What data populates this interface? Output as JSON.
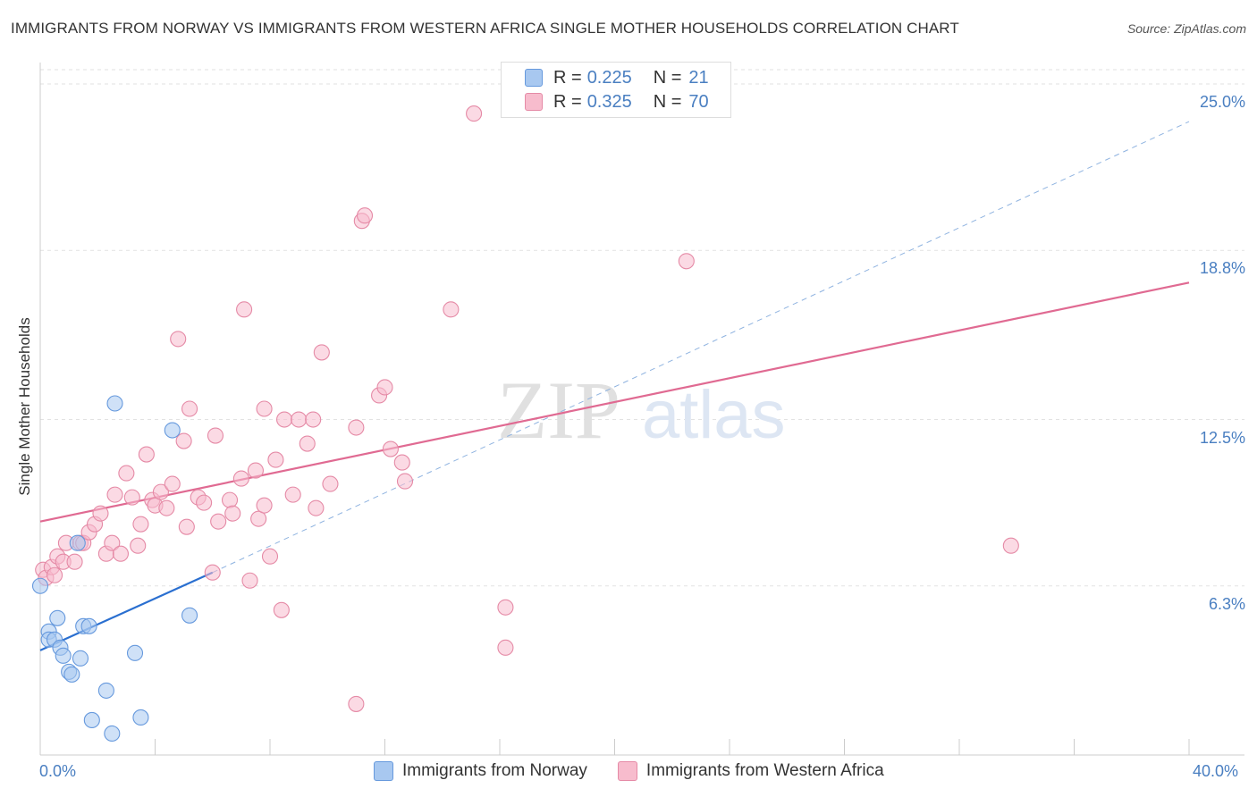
{
  "title": "IMMIGRANTS FROM NORWAY VS IMMIGRANTS FROM WESTERN AFRICA SINGLE MOTHER HOUSEHOLDS CORRELATION CHART",
  "source": "Source: ZipAtlas.com",
  "watermark": {
    "zip": "ZIP",
    "atlas": "atlas"
  },
  "legend_top": {
    "rows": [
      {
        "r_label": "R =",
        "r_value": "0.225",
        "n_label": "N =",
        "n_value": "21",
        "color": "#a8c8f0",
        "border": "#6699dd"
      },
      {
        "r_label": "R =",
        "r_value": "0.325",
        "n_label": "N =",
        "n_value": "70",
        "color": "#f7bccd",
        "border": "#e58aa6"
      }
    ]
  },
  "legend_bottom": [
    {
      "label": "Immigrants from Norway",
      "color": "#a8c8f0",
      "border": "#6699dd"
    },
    {
      "label": "Immigrants from Western Africa",
      "color": "#f7bccd",
      "border": "#e58aa6"
    }
  ],
  "axis_labels": {
    "x_min": "0.0%",
    "x_max": "40.0%",
    "y_title": "Single Mother Households"
  },
  "chart_data": {
    "type": "scatter",
    "xlim": [
      0,
      40
    ],
    "ylim": [
      0,
      25.8
    ],
    "y_ticks": [
      {
        "value": 6.3,
        "label": "6.3%"
      },
      {
        "value": 12.5,
        "label": "12.5%"
      },
      {
        "value": 18.8,
        "label": "18.8%"
      },
      {
        "value": 25.0,
        "label": "25.0%"
      }
    ],
    "x_tick_labels": [
      "0.0%",
      "40.0%"
    ],
    "series": [
      {
        "name": "Immigrants from Norway",
        "color": "#a8c8f0",
        "stroke": "#6699dd",
        "trend": {
          "x1": 0,
          "y1": 3.9,
          "x2": 6.0,
          "y2": 6.8,
          "color": "#2a6fd0"
        },
        "trend_ext": {
          "x1": 6.0,
          "y1": 6.8,
          "x2": 40,
          "y2": 23.6,
          "color": "#8fb3e0"
        },
        "points": [
          [
            0.0,
            6.3
          ],
          [
            0.3,
            4.6
          ],
          [
            0.3,
            4.3
          ],
          [
            0.5,
            4.3
          ],
          [
            0.6,
            5.1
          ],
          [
            0.7,
            4.0
          ],
          [
            0.8,
            3.7
          ],
          [
            1.0,
            3.1
          ],
          [
            1.1,
            3.0
          ],
          [
            1.4,
            3.6
          ],
          [
            1.3,
            7.9
          ],
          [
            1.5,
            4.8
          ],
          [
            1.7,
            4.8
          ],
          [
            2.3,
            2.4
          ],
          [
            1.8,
            1.3
          ],
          [
            2.5,
            0.8
          ],
          [
            3.3,
            3.8
          ],
          [
            3.5,
            1.4
          ],
          [
            2.6,
            13.1
          ],
          [
            4.6,
            12.1
          ],
          [
            5.2,
            5.2
          ]
        ]
      },
      {
        "name": "Immigrants from Western Africa",
        "color": "#f7bccd",
        "stroke": "#e58aa6",
        "trend": {
          "x1": 0,
          "y1": 8.7,
          "x2": 40,
          "y2": 17.6,
          "color": "#e06a92"
        },
        "points": [
          [
            0.1,
            6.9
          ],
          [
            0.2,
            6.6
          ],
          [
            0.4,
            7.0
          ],
          [
            0.5,
            6.7
          ],
          [
            0.6,
            7.4
          ],
          [
            0.8,
            7.2
          ],
          [
            0.9,
            7.9
          ],
          [
            1.2,
            7.2
          ],
          [
            1.4,
            7.9
          ],
          [
            1.5,
            7.9
          ],
          [
            1.7,
            8.3
          ],
          [
            1.9,
            8.6
          ],
          [
            2.1,
            9.0
          ],
          [
            2.3,
            7.5
          ],
          [
            2.5,
            7.9
          ],
          [
            2.6,
            9.7
          ],
          [
            2.8,
            7.5
          ],
          [
            3.0,
            10.5
          ],
          [
            3.2,
            9.6
          ],
          [
            3.4,
            7.8
          ],
          [
            3.5,
            8.6
          ],
          [
            3.7,
            11.2
          ],
          [
            3.9,
            9.5
          ],
          [
            4.0,
            9.3
          ],
          [
            4.2,
            9.8
          ],
          [
            4.4,
            9.2
          ],
          [
            4.6,
            10.1
          ],
          [
            4.8,
            15.5
          ],
          [
            5.0,
            11.7
          ],
          [
            5.1,
            8.5
          ],
          [
            5.2,
            12.9
          ],
          [
            5.5,
            9.6
          ],
          [
            5.7,
            9.4
          ],
          [
            6.0,
            6.8
          ],
          [
            6.1,
            11.9
          ],
          [
            6.2,
            8.7
          ],
          [
            6.6,
            9.5
          ],
          [
            6.7,
            9.0
          ],
          [
            7.0,
            10.3
          ],
          [
            7.1,
            16.6
          ],
          [
            7.3,
            6.5
          ],
          [
            7.5,
            10.6
          ],
          [
            7.6,
            8.8
          ],
          [
            7.8,
            9.3
          ],
          [
            7.8,
            12.9
          ],
          [
            8.0,
            7.4
          ],
          [
            8.2,
            11.0
          ],
          [
            8.4,
            5.4
          ],
          [
            8.5,
            12.5
          ],
          [
            8.8,
            9.7
          ],
          [
            9.0,
            12.5
          ],
          [
            9.3,
            11.6
          ],
          [
            9.5,
            12.5
          ],
          [
            9.6,
            9.2
          ],
          [
            9.8,
            15.0
          ],
          [
            10.1,
            10.1
          ],
          [
            11.0,
            1.9
          ],
          [
            11.0,
            12.2
          ],
          [
            11.2,
            19.9
          ],
          [
            11.3,
            20.1
          ],
          [
            11.8,
            13.4
          ],
          [
            12.0,
            13.7
          ],
          [
            12.2,
            11.4
          ],
          [
            12.6,
            10.9
          ],
          [
            12.7,
            10.2
          ],
          [
            14.3,
            16.6
          ],
          [
            15.1,
            23.9
          ],
          [
            16.2,
            4.0
          ],
          [
            16.2,
            5.5
          ],
          [
            22.5,
            18.4
          ],
          [
            33.8,
            7.8
          ]
        ]
      }
    ]
  }
}
